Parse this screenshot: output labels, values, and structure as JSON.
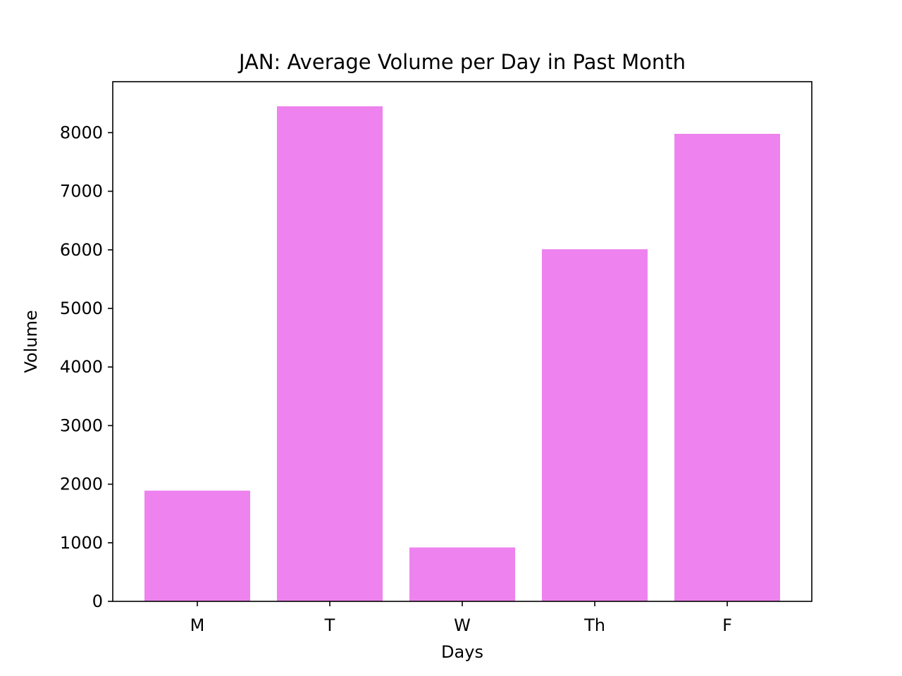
{
  "chart_data": {
    "type": "bar",
    "title": "JAN: Average Volume per Day in Past Month",
    "xlabel": "Days",
    "ylabel": "Volume",
    "categories": [
      "M",
      "T",
      "W",
      "Th",
      "F"
    ],
    "values": [
      1890,
      8450,
      920,
      6010,
      7980
    ],
    "ylim": [
      0,
      8870
    ],
    "yticks": [
      0,
      1000,
      2000,
      3000,
      4000,
      5000,
      6000,
      7000,
      8000
    ],
    "bar_color": "#EE82EE",
    "grid": false,
    "legend": "none"
  }
}
